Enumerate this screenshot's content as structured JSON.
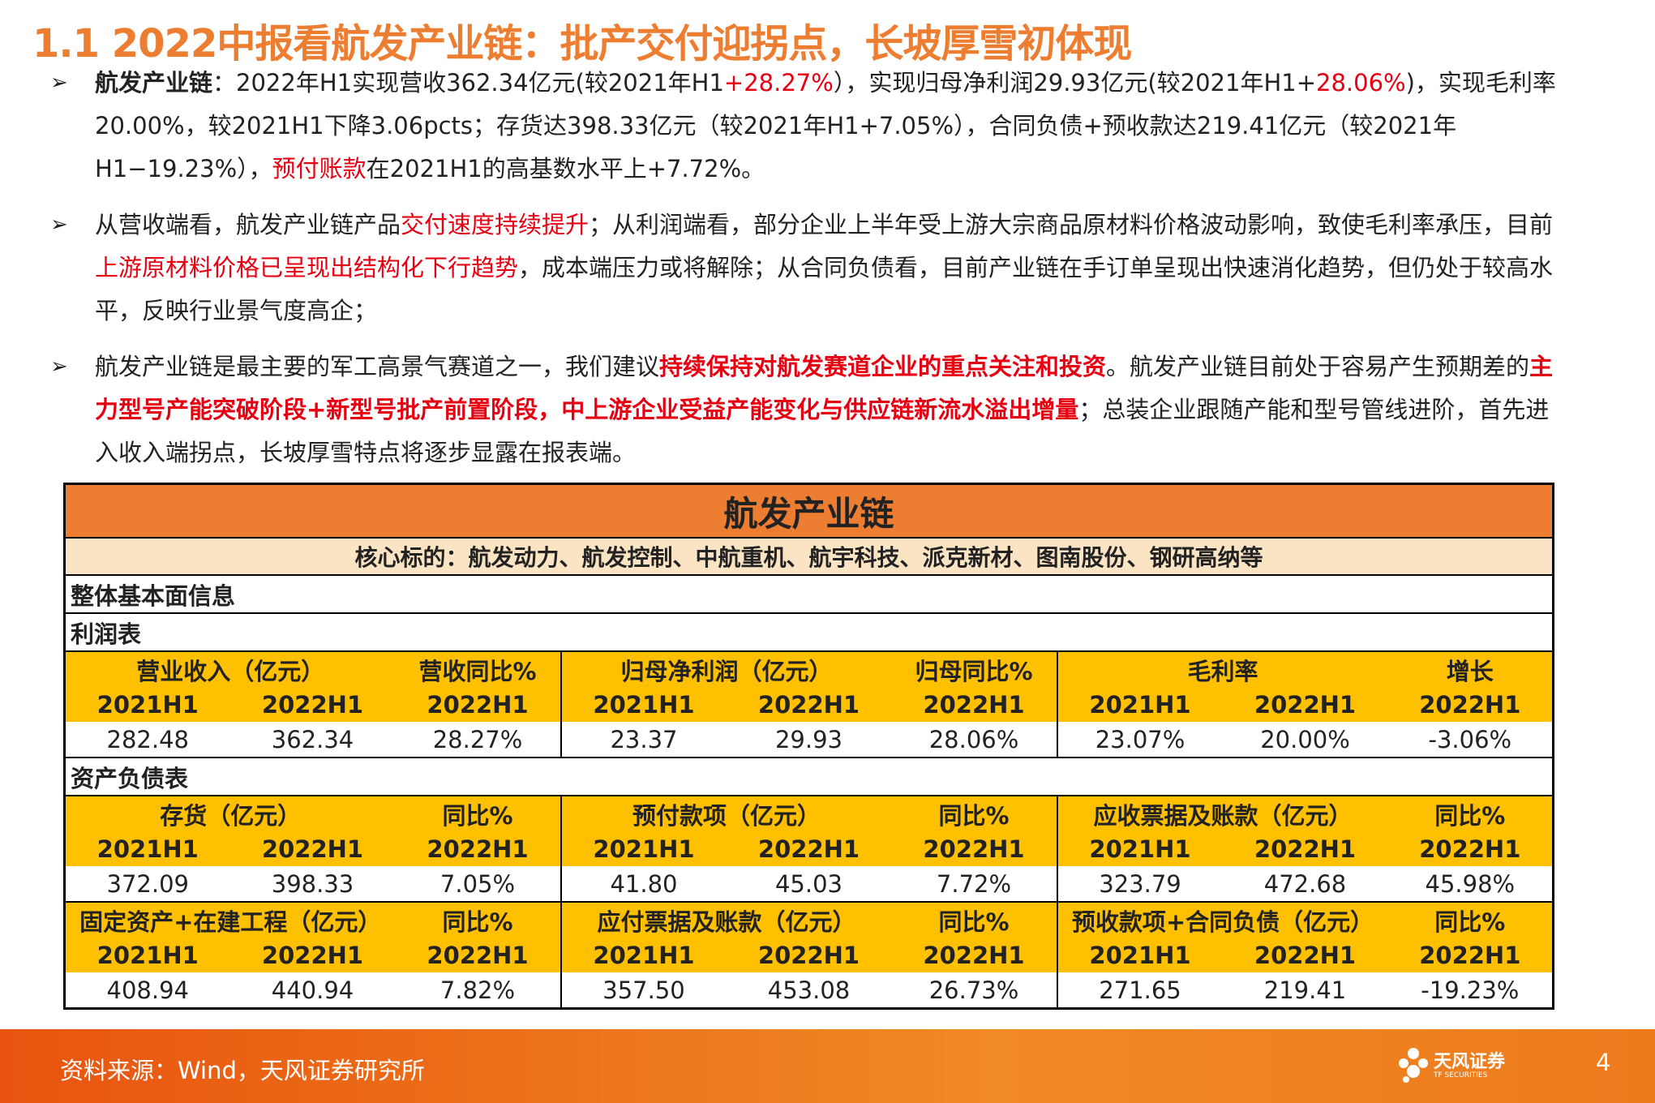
{
  "title": "1.1 2022中报看航发产业链：批产交付迎拐点，长坡厚雪初体现",
  "bullets": [
    [
      {
        "text": "航发产业链",
        "bold": true
      },
      {
        "text": "：2022年H1实现营收362.34亿元(较2021年H1"
      },
      {
        "text": "+28.27%",
        "color": "#e60012"
      },
      {
        "text": "），实现归母净利润29.93亿元(较2021年H1+"
      },
      {
        "text": "28.06%",
        "color": "#e60012"
      },
      {
        "text": ")，实现毛利率20.00%，较2021H1下降3.06pcts；存货达398.33亿元（较2021年H1+7.05%），合同负债+预收款达219.41亿元（较2021年H1−19.23%），"
      },
      {
        "text": "预付账款",
        "color": "#e60012"
      },
      {
        "text": "在2021H1的高基数水平上+7.72%。"
      }
    ],
    [
      {
        "text": "从营收端看，航发产业链产品"
      },
      {
        "text": "交付速度持续提升",
        "color": "#e60012"
      },
      {
        "text": "；从利润端看，部分企业上半年受上游大宗商品原材料价格波动影响，致使毛利率承压，目前"
      },
      {
        "text": "上游原材料价格已呈现出结构化下行趋势",
        "color": "#e60012"
      },
      {
        "text": "，成本端压力或将解除；从合同负债看，目前产业链在手订单呈现出快速消化趋势，但仍处于较高水平，反映行业景气度高企；"
      }
    ],
    [
      {
        "text": "航发产业链是最主要的军工高景气赛道之一，我们建议"
      },
      {
        "text": "持续保持对航发赛道企业的重点关注和投资",
        "color": "#e60012",
        "bold": true
      },
      {
        "text": "。航发产业链目前处于容易产生预期差的"
      },
      {
        "text": "主力型号产能突破阶段+新型号批产前置阶段，中上游企业受益产能变化与供应链新流水溢出增量",
        "color": "#e60012",
        "bold": true
      },
      {
        "text": "；总装企业跟随产能和型号管线进阶，首先进入收入端拐点，长坡厚雪特点将逐步显露在报表端。"
      }
    ]
  ],
  "table": {
    "title": "航发产业链",
    "subtitle": "核心标的：航发动力、航发控制、中航重机、航宇科技、派克新材、图南股份、钢研高纳等",
    "overview": "整体基本面信息",
    "sections": [
      {
        "label": "利润表",
        "rows": [
          [
            {
              "metric": "营业收入（亿元）",
              "change": "营收同比%",
              "periods": [
                "2021H1",
                "2022H1",
                "2022H1"
              ],
              "values": [
                "282.48",
                "362.34",
                "28.27%"
              ]
            },
            {
              "metric": "归母净利润（亿元）",
              "change": "归母同比%",
              "periods": [
                "2021H1",
                "2022H1",
                "2022H1"
              ],
              "values": [
                "23.37",
                "29.93",
                "28.06%"
              ]
            },
            {
              "metric": "毛利率",
              "change": "增长",
              "periods": [
                "2021H1",
                "2022H1",
                "2022H1"
              ],
              "values": [
                "23.07%",
                "20.00%",
                "-3.06%"
              ]
            }
          ]
        ]
      },
      {
        "label": "资产负债表",
        "rows": [
          [
            {
              "metric": "存货（亿元）",
              "change": "同比%",
              "periods": [
                "2021H1",
                "2022H1",
                "2022H1"
              ],
              "values": [
                "372.09",
                "398.33",
                "7.05%"
              ]
            },
            {
              "metric": "预付款项（亿元）",
              "change": "同比%",
              "periods": [
                "2021H1",
                "2022H1",
                "2022H1"
              ],
              "values": [
                "41.80",
                "45.03",
                "7.72%"
              ]
            },
            {
              "metric": "应收票据及账款（亿元）",
              "change": "同比%",
              "periods": [
                "2021H1",
                "2022H1",
                "2022H1"
              ],
              "values": [
                "323.79",
                "472.68",
                "45.98%"
              ]
            }
          ],
          [
            {
              "metric": "固定资产+在建工程（亿元）",
              "change": "同比%",
              "periods": [
                "2021H1",
                "2022H1",
                "2022H1"
              ],
              "values": [
                "408.94",
                "440.94",
                "7.82%"
              ]
            },
            {
              "metric": "应付票据及账款（亿元）",
              "change": "同比%",
              "periods": [
                "2021H1",
                "2022H1",
                "2022H1"
              ],
              "values": [
                "357.50",
                "453.08",
                "26.73%"
              ]
            },
            {
              "metric": "预收款项+合同负债（亿元）",
              "change": "同比%",
              "periods": [
                "2021H1",
                "2022H1",
                "2022H1"
              ],
              "values": [
                "271.65",
                "219.41",
                "-19.23%"
              ]
            }
          ]
        ]
      }
    ]
  },
  "footer": {
    "source": "资料来源：Wind，天风证券研究所",
    "logo": "天风证券",
    "logo_en": "TF SECURITIES",
    "page": "4"
  }
}
